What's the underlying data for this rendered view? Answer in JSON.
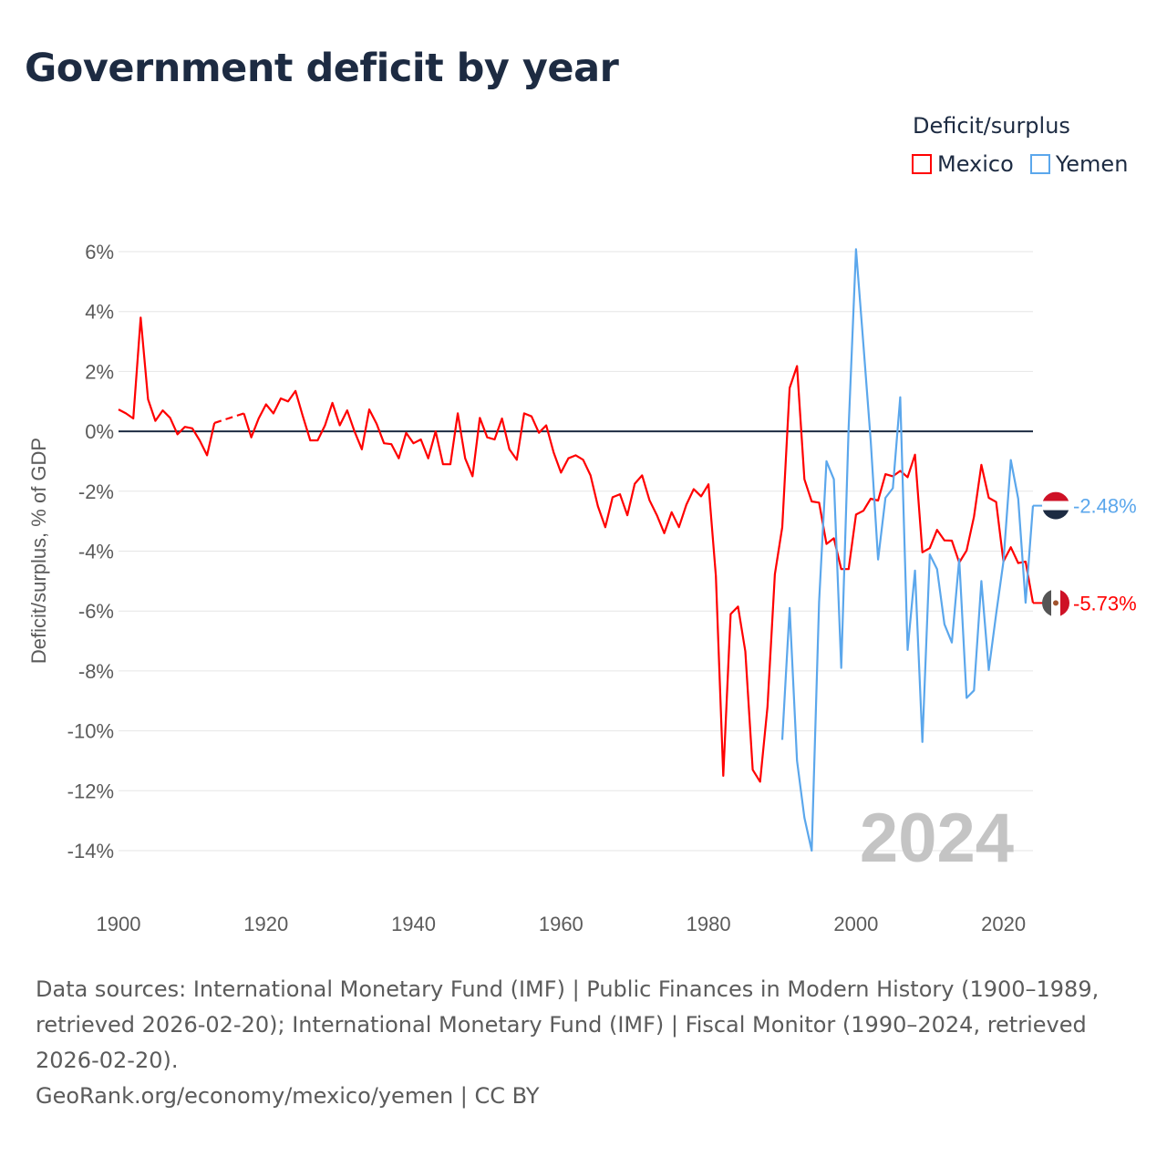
{
  "title": "Government deficit by year",
  "legend": {
    "title": "Deficit/surplus",
    "items": [
      {
        "name": "Mexico",
        "color": "#ff0000"
      },
      {
        "name": "Yemen",
        "color": "#5ba7ec"
      }
    ]
  },
  "footer": {
    "sources": "Data sources: International Monetary Fund (IMF) | Public Finances in Modern History (1900–1989, retrieved 2026-02-20); International Monetary Fund (IMF) | Fiscal Monitor (1990–2024, retrieved 2026-02-20).",
    "credit": "GeoRank.org/economy/mexico/yemen | CC BY"
  },
  "chart_data": {
    "type": "line",
    "title": "Government deficit by year",
    "xlabel": "",
    "ylabel": "Deficit/surplus, % of GDP",
    "xlim": [
      1900,
      2024
    ],
    "ylim": [
      -14,
      6
    ],
    "xticks": [
      1900,
      1920,
      1940,
      1960,
      1980,
      2000,
      2020
    ],
    "xtick_labels": [
      "1900",
      "1920",
      "1940",
      "1960",
      "1980",
      "2000",
      "2020"
    ],
    "yticks": [
      6,
      4,
      2,
      0,
      -2,
      -4,
      -6,
      -8,
      -10,
      -12,
      -14
    ],
    "ytick_labels": [
      "6%",
      "4%",
      "2%",
      "0%",
      "-2%",
      "-4%",
      "-6%",
      "-8%",
      "-10%",
      "-12%",
      "-14%"
    ],
    "year_watermark": "2024",
    "end_labels": {
      "Mexico": "-5.73%",
      "Yemen": "-2.48%"
    },
    "series": [
      {
        "name": "Mexico",
        "color": "#ff0000",
        "start_year": 1900,
        "values": [
          0.73,
          0.6,
          0.43,
          3.8,
          1.07,
          0.35,
          0.7,
          0.45,
          -0.1,
          0.15,
          0.1,
          -0.3,
          -0.8,
          0.28,
          null,
          null,
          null,
          0.6,
          -0.2,
          0.43,
          0.9,
          0.6,
          1.1,
          1.0,
          1.35,
          0.5,
          -0.3,
          -0.3,
          0.2,
          0.95,
          0.2,
          0.7,
          0.0,
          -0.6,
          0.73,
          0.25,
          -0.4,
          -0.43,
          -0.9,
          -0.05,
          -0.4,
          -0.27,
          -0.9,
          0.0,
          -1.1,
          -1.1,
          0.6,
          -0.9,
          -1.5,
          0.45,
          -0.2,
          -0.27,
          0.43,
          -0.6,
          -0.95,
          0.6,
          0.5,
          -0.05,
          0.2,
          -0.7,
          -1.38,
          -0.9,
          -0.8,
          -0.95,
          -1.47,
          -2.5,
          -3.2,
          -2.2,
          -2.1,
          -2.8,
          -1.75,
          -1.47,
          -2.3,
          -2.8,
          -3.4,
          -2.7,
          -3.2,
          -2.45,
          -1.93,
          -2.17,
          -1.77,
          -4.83,
          -11.5,
          -6.1,
          -5.85,
          -7.35,
          -11.3,
          -11.7,
          -9.2,
          -4.77,
          -3.2,
          1.45,
          2.18,
          -1.6,
          -2.34,
          -2.38,
          -3.76,
          -3.57,
          -4.6,
          -4.6,
          -2.78,
          -2.65,
          -2.25,
          -2.31,
          -1.43,
          -1.5,
          -1.32,
          -1.53,
          -0.78,
          -4.04,
          -3.9,
          -3.29,
          -3.64,
          -3.65,
          -4.38,
          -3.98,
          -2.85,
          -1.12,
          -2.22,
          -2.36,
          -4.34,
          -3.87,
          -4.4,
          -4.35,
          -5.73
        ]
      },
      {
        "name": "Yemen",
        "color": "#5ba7ec",
        "start_year": 1990,
        "values": [
          -10.3,
          -5.9,
          -11.0,
          -12.9,
          -14.0,
          -5.7,
          -1.0,
          -1.6,
          -7.9,
          0.12,
          6.08,
          2.9,
          -0.3,
          -4.28,
          -2.22,
          -1.9,
          1.14,
          -7.3,
          -4.65,
          -10.37,
          -4.11,
          -4.6,
          -6.44,
          -7.05,
          -4.27,
          -8.9,
          -8.65,
          -5.0,
          -7.97,
          -6.1,
          -4.35,
          -0.96,
          -2.25,
          -5.72,
          -2.48
        ]
      }
    ]
  }
}
